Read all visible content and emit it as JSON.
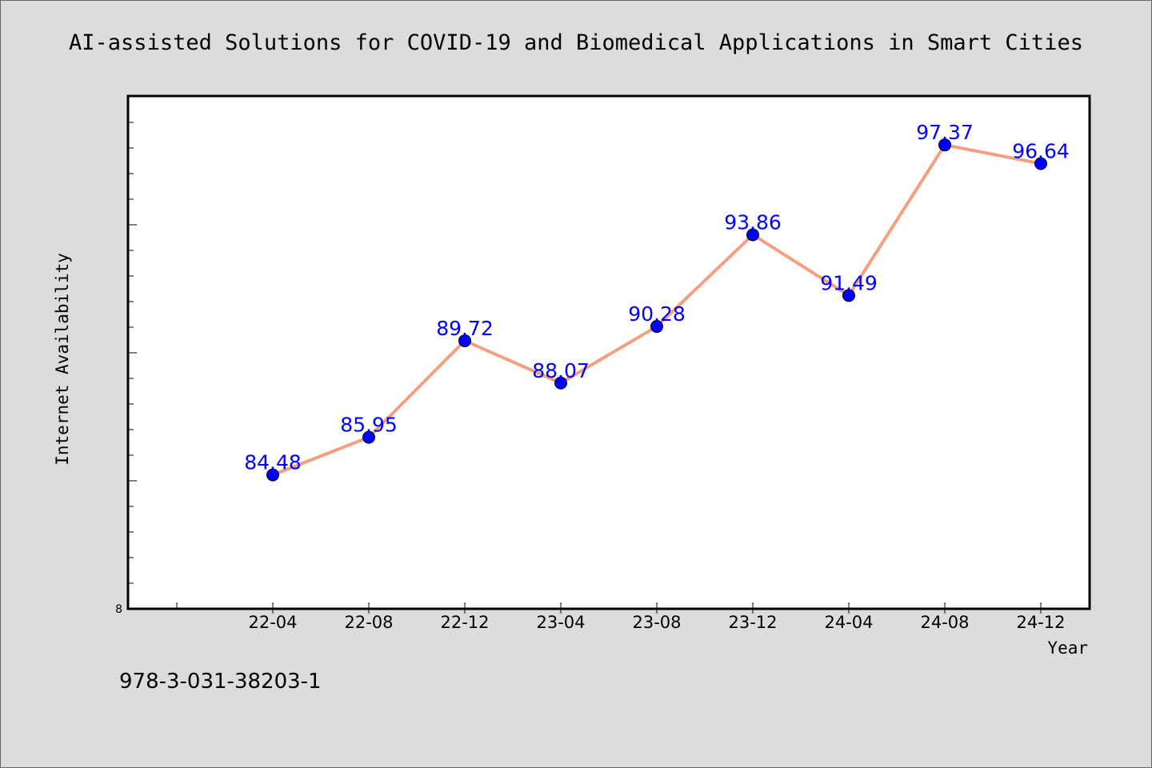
{
  "page": {
    "isbn": "978-3-031-38203-1"
  },
  "chart_data": {
    "type": "line",
    "title": "AI-assisted Solutions for COVID-19 and Biomedical Applications in Smart Cities",
    "xlabel": "Year",
    "ylabel": "Internet Availability",
    "categories": [
      "22-04",
      "22-08",
      "22-12",
      "23-04",
      "23-08",
      "23-12",
      "24-04",
      "24-08",
      "24-12"
    ],
    "series": [
      {
        "values": [
          84.48,
          85.95,
          89.72,
          88.07,
          90.28,
          93.86,
          91.49,
          97.37,
          96.64
        ],
        "line_color": "#f4a080",
        "marker_color": "#0000ff",
        "label_color": "#0000ff"
      }
    ],
    "ylim": [
      79.25,
      99.25
    ],
    "y_tick_label": "8",
    "grid": false,
    "legend": "none",
    "data_labels": true
  }
}
